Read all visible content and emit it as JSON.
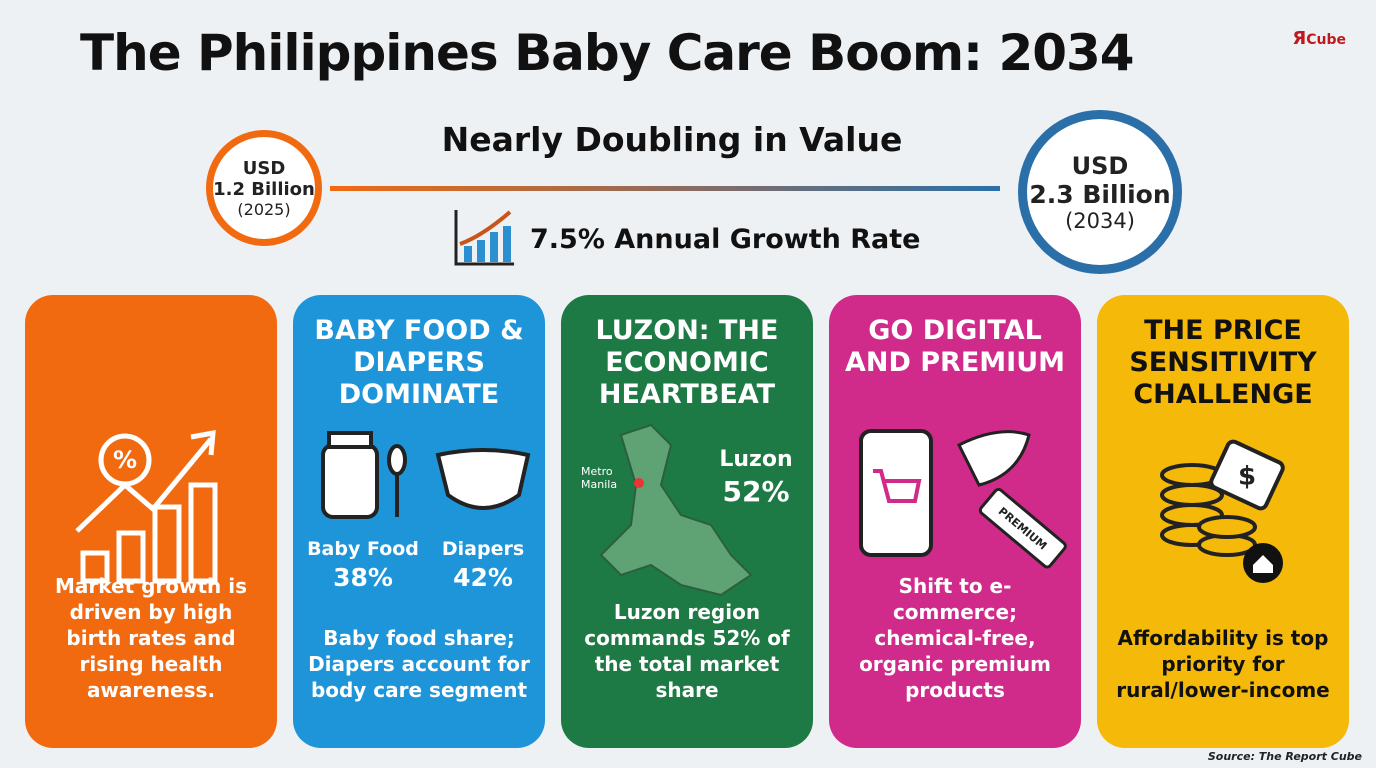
{
  "header": {
    "title": "The Philippines Baby Care Boom: 2034",
    "logo": {
      "mark": "Я",
      "text": "Cube"
    },
    "subtitle": "Nearly Doubling in Value",
    "start": {
      "currency": "USD",
      "amount": "1.2 Billion",
      "year": "(2025)"
    },
    "end": {
      "currency": "USD",
      "amount": "2.3 Billion",
      "year": "(2034)"
    },
    "growth": "7.5% Annual Growth Rate"
  },
  "cards": [
    {
      "title": "",
      "text": "Market growth is driven by high birth rates and rising health awareness.",
      "icon": {
        "symbol": "%"
      }
    },
    {
      "title": "BABY FOOD & DIAPERS DOMINATE",
      "text": "Baby food share; Diapers account for body care segment",
      "items": [
        {
          "label": "Baby Food",
          "value": "38%"
        },
        {
          "label": "Diapers",
          "value": "42%"
        }
      ]
    },
    {
      "title": "LUZON: THE ECONOMIC HEARTBEAT",
      "text": "Luzon region commands 52% of the total market share",
      "map": {
        "city": "Metro Manila",
        "region": "Luzon",
        "value": "52%"
      }
    },
    {
      "title": "GO DIGITAL AND PREMIUM",
      "text": "Shift to e-commerce; chemical-free, organic premium products",
      "tag": "PREMIUM"
    },
    {
      "title": "THE PRICE SENSITIVITY CHALLENGE",
      "text": "Affordability is top priority for rural/lower-income",
      "icon": {
        "symbol": "$"
      }
    }
  ],
  "footer": {
    "source": "Source: The Report Cube"
  }
}
